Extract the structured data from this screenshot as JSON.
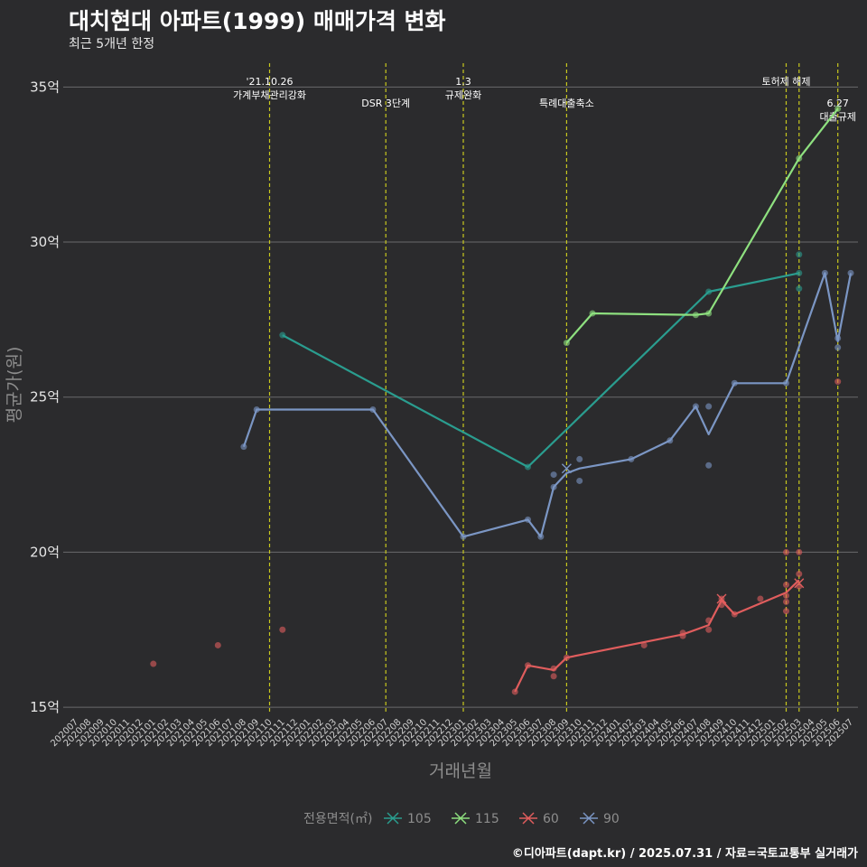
{
  "header": {
    "title": "대치현대 아파트(1999) 매매가격 변화",
    "subtitle": "최근 5개년 한정"
  },
  "caption": "©디아파트(dapt.kr) / 2025.07.31 / 자료=국토교통부 실거래가",
  "chart_data": {
    "type": "line",
    "xlabel": "거래년월",
    "ylabel": "평균가(원)",
    "ylim": [
      14.8,
      36
    ],
    "yticks": [
      15,
      20,
      25,
      30,
      35
    ],
    "ytick_labels": [
      "15억",
      "20억",
      "25억",
      "30억",
      "35억"
    ],
    "x_categories": [
      "202007",
      "202008",
      "202009",
      "202010",
      "202011",
      "202012",
      "202101",
      "202102",
      "202103",
      "202104",
      "202105",
      "202106",
      "202107",
      "202108",
      "202109",
      "202110",
      "202111",
      "202112",
      "202201",
      "202202",
      "202203",
      "202204",
      "202205",
      "202206",
      "202207",
      "202208",
      "202209",
      "202210",
      "202211",
      "202212",
      "202301",
      "202302",
      "202303",
      "202304",
      "202305",
      "202306",
      "202307",
      "202308",
      "202309",
      "202310",
      "202311",
      "202312",
      "202401",
      "202402",
      "202403",
      "202404",
      "202405",
      "202406",
      "202407",
      "202408",
      "202409",
      "202410",
      "202411",
      "202412",
      "202501",
      "202502",
      "202503",
      "202504",
      "202505",
      "202506",
      "202507"
    ],
    "grid": true,
    "legend": {
      "title": "전용면적(㎡)",
      "position": "bottom",
      "entries": [
        "105",
        "115",
        "60",
        "90"
      ]
    },
    "events": [
      {
        "x": "202110",
        "lines": [
          "'21.10.26",
          "가계부채관리강화"
        ],
        "row": 0
      },
      {
        "x": "202207",
        "lines": [
          "DSR 3단계"
        ],
        "row": 1
      },
      {
        "x": "202301",
        "lines": [
          "1.3",
          "규제완화"
        ],
        "row": 0
      },
      {
        "x": "202309",
        "lines": [
          "특례대출축소"
        ],
        "row": 1
      },
      {
        "x": "202502",
        "lines": [
          "토허제 해제"
        ],
        "row": 0
      },
      {
        "x": "202503",
        "lines": [],
        "row": 0
      },
      {
        "x": "202506",
        "lines": [
          "6.27",
          "대출규제"
        ],
        "row": 1
      }
    ],
    "series": [
      {
        "name": "105",
        "color": "#2a9d8f",
        "line": [
          [
            "202111",
            27.0
          ],
          [
            "202306",
            22.75
          ],
          [
            "202408",
            28.4
          ],
          [
            "202503",
            29.0
          ]
        ],
        "points": [
          [
            "202111",
            27.0
          ],
          [
            "202306",
            22.75
          ],
          [
            "202408",
            28.4
          ],
          [
            "202503",
            29.6
          ],
          [
            "202503",
            28.5
          ],
          [
            "202503",
            29.0
          ]
        ],
        "cross": []
      },
      {
        "name": "115",
        "color": "#8ee07f",
        "line": [
          [
            "202309",
            26.75
          ],
          [
            "202311",
            27.7
          ],
          [
            "202407",
            27.65
          ],
          [
            "202408",
            27.7
          ],
          [
            "202503",
            32.7
          ],
          [
            "202506",
            34.3
          ]
        ],
        "points": [
          [
            "202309",
            26.75
          ],
          [
            "202311",
            27.7
          ],
          [
            "202407",
            27.65
          ],
          [
            "202408",
            27.7
          ],
          [
            "202503",
            32.7
          ],
          [
            "202506",
            34.3
          ]
        ],
        "cross": []
      },
      {
        "name": "60",
        "color": "#e05d5d",
        "line": [
          [
            "202305",
            15.5
          ],
          [
            "202306",
            16.35
          ],
          [
            "202308",
            16.2
          ],
          [
            "202309",
            16.6
          ],
          [
            "202406",
            17.35
          ],
          [
            "202408",
            17.65
          ],
          [
            "202409",
            18.45
          ],
          [
            "202410",
            18.0
          ],
          [
            "202502",
            18.7
          ],
          [
            "202503",
            19.1
          ]
        ],
        "points": [
          [
            "202101",
            16.4
          ],
          [
            "202106",
            17.0
          ],
          [
            "202111",
            17.5
          ],
          [
            "202305",
            15.5
          ],
          [
            "202306",
            16.35
          ],
          [
            "202308",
            16.0
          ],
          [
            "202308",
            16.25
          ],
          [
            "202309",
            16.6
          ],
          [
            "202403",
            17.0
          ],
          [
            "202406",
            17.3
          ],
          [
            "202406",
            17.4
          ],
          [
            "202408",
            17.5
          ],
          [
            "202408",
            17.8
          ],
          [
            "202409",
            18.3
          ],
          [
            "202409",
            18.5
          ],
          [
            "202410",
            18.0
          ],
          [
            "202412",
            18.5
          ],
          [
            "202502",
            20.0
          ],
          [
            "202502",
            18.95
          ],
          [
            "202502",
            18.6
          ],
          [
            "202502",
            18.4
          ],
          [
            "202502",
            18.1
          ],
          [
            "202503",
            20.0
          ],
          [
            "202503",
            19.3
          ],
          [
            "202503",
            18.9
          ],
          [
            "202506",
            25.5
          ]
        ],
        "cross": [
          [
            "202409",
            18.5
          ],
          [
            "202503",
            19.0
          ]
        ]
      },
      {
        "name": "90",
        "color": "#7b96c4",
        "line": [
          [
            "202108",
            23.4
          ],
          [
            "202109",
            24.6
          ],
          [
            "202206",
            24.6
          ],
          [
            "202301",
            20.5
          ],
          [
            "202306",
            21.05
          ],
          [
            "202307",
            20.5
          ],
          [
            "202308",
            22.1
          ],
          [
            "202309",
            22.55
          ],
          [
            "202310",
            22.7
          ],
          [
            "202402",
            23.0
          ],
          [
            "202405",
            23.6
          ],
          [
            "202407",
            24.7
          ],
          [
            "202408",
            23.8
          ],
          [
            "202410",
            25.45
          ],
          [
            "202502",
            25.45
          ],
          [
            "202505",
            29.0
          ],
          [
            "202506",
            26.8
          ],
          [
            "202507",
            29.0
          ]
        ],
        "points": [
          [
            "202108",
            23.4
          ],
          [
            "202109",
            24.6
          ],
          [
            "202206",
            24.6
          ],
          [
            "202301",
            20.5
          ],
          [
            "202306",
            21.05
          ],
          [
            "202307",
            20.5
          ],
          [
            "202308",
            22.1
          ],
          [
            "202308",
            22.5
          ],
          [
            "202310",
            23.0
          ],
          [
            "202310",
            22.3
          ],
          [
            "202402",
            23.0
          ],
          [
            "202405",
            23.6
          ],
          [
            "202407",
            24.7
          ],
          [
            "202408",
            24.7
          ],
          [
            "202408",
            22.8
          ],
          [
            "202410",
            25.45
          ],
          [
            "202502",
            25.45
          ],
          [
            "202505",
            29.0
          ],
          [
            "202506",
            26.6
          ],
          [
            "202506",
            26.9
          ],
          [
            "202507",
            29.0
          ]
        ],
        "cross": [
          [
            "202309",
            22.7
          ]
        ]
      }
    ]
  }
}
